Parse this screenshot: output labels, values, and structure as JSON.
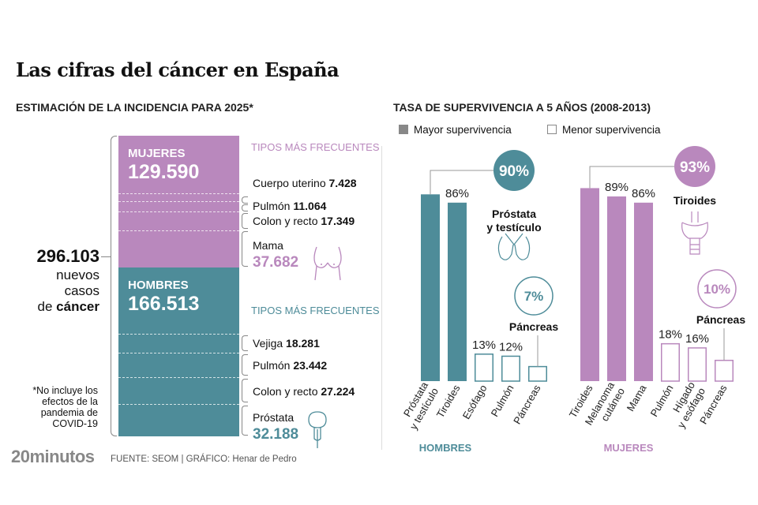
{
  "title": "Las cifras del cáncer en España",
  "left": {
    "subtitle": "ESTIMACIÓN DE LA INCIDENCIA PARA 2025*",
    "total": "296.103",
    "total_caption_1": "nuevos",
    "total_caption_2": "casos",
    "total_caption_3a": "de ",
    "total_caption_3b": "cáncer",
    "note": "*No incluye los efectos de la pandemia de COVID-19",
    "tipos_label": "TIPOS MÁS FRECUENTES",
    "mujeres": {
      "label": "MUJERES",
      "value": "129.590",
      "color": "#b988bd",
      "types": [
        {
          "name": "Cuerpo uterino",
          "value": "7.428"
        },
        {
          "name": "Pulmón",
          "value": "11.064"
        },
        {
          "name": "Colon y recto",
          "value": "17.349"
        },
        {
          "name": "Mama",
          "value": "37.682",
          "icon": "breast-icon"
        }
      ]
    },
    "hombres": {
      "label": "HOMBRES",
      "value": "166.513",
      "color": "#4e8c99",
      "types": [
        {
          "name": "Vejiga",
          "value": "18.281"
        },
        {
          "name": "Pulmón",
          "value": "23.442"
        },
        {
          "name": "Colon y recto",
          "value": "27.224"
        },
        {
          "name": "Próstata",
          "value": "32.188",
          "icon": "prostate-icon"
        }
      ]
    }
  },
  "footer": {
    "logo": "20minutos",
    "source": "FUENTE: SEOM  |  GRÁFICO: Henar de Pedro"
  },
  "chart_data": {
    "type": "bar",
    "title": "TASA DE SUPERVIVENCIA A 5 AÑOS (2008-2013)",
    "legend": [
      "Mayor supervivencia",
      "Menor supervivencia"
    ],
    "legend_placement": "top",
    "ylim": [
      0,
      100
    ],
    "unit": "%",
    "groups": [
      {
        "name": "HOMBRES",
        "color": "#4e8c99",
        "categories": [
          "Próstata y testículo",
          "Tiroides",
          "Esófago",
          "Pulmón",
          "Páncreas"
        ],
        "values": [
          90,
          86,
          13,
          12,
          7
        ],
        "kind": [
          "Mayor",
          "Mayor",
          "Menor",
          "Menor",
          "Menor"
        ],
        "value_labels": [
          "",
          "86%",
          "13%",
          "12%",
          ""
        ],
        "highlight_max": {
          "value": "90%",
          "label": "Próstata y testículo",
          "icon": "testicle-icon"
        },
        "highlight_min": {
          "value": "7%",
          "label": "Páncreas"
        }
      },
      {
        "name": "MUJERES",
        "color": "#b988bd",
        "categories": [
          "Tiroides",
          "Melanoma cutáneo",
          "Mama",
          "Pulmón",
          "Hígado y esófago",
          "Páncreas"
        ],
        "values": [
          93,
          89,
          86,
          18,
          16,
          10
        ],
        "kind": [
          "Mayor",
          "Mayor",
          "Mayor",
          "Menor",
          "Menor",
          "Menor"
        ],
        "value_labels": [
          "",
          "89%",
          "86%",
          "18%",
          "16%",
          ""
        ],
        "highlight_max": {
          "value": "93%",
          "label": "Tiroides",
          "icon": "thyroid-icon"
        },
        "highlight_min": {
          "value": "10%",
          "label": "Páncreas"
        }
      }
    ]
  }
}
